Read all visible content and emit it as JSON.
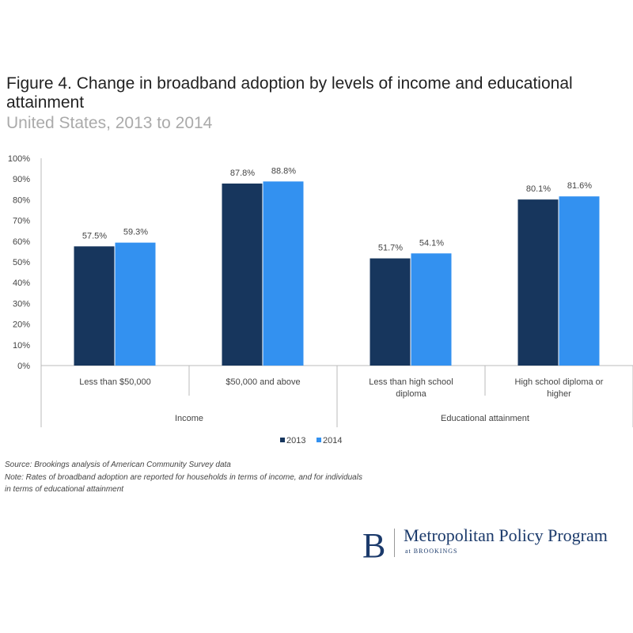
{
  "title": "Figure 4. Change in broadband adoption by levels of income and educational attainment",
  "subtitle": "United States, 2013 to 2014",
  "chart_data": {
    "type": "bar",
    "categories": [
      "Less than $50,000",
      "$50,000 and above",
      "Less than high school diploma",
      "High school diploma or higher"
    ],
    "groups": [
      {
        "label": "Income",
        "categories": [
          0,
          1
        ]
      },
      {
        "label": "Educational attainment",
        "categories": [
          2,
          3
        ]
      }
    ],
    "series": [
      {
        "name": "2013",
        "color": "#17365d",
        "values": [
          57.5,
          87.8,
          51.7,
          80.1
        ],
        "labels": [
          "57.5%",
          "87.8%",
          "51.7%",
          "80.1%"
        ]
      },
      {
        "name": "2014",
        "color": "#3391f0",
        "values": [
          59.3,
          88.8,
          54.1,
          81.6
        ],
        "labels": [
          "59.3%",
          "88.8%",
          "54.1%",
          "81.6%"
        ]
      }
    ],
    "yticks": [
      "0%",
      "10%",
      "20%",
      "30%",
      "40%",
      "50%",
      "60%",
      "70%",
      "80%",
      "90%",
      "100%"
    ],
    "ylim": [
      0,
      100
    ],
    "grid": false,
    "legend": "bottom"
  },
  "footer": {
    "source": "Source: Brookings analysis of American Community Survey data",
    "note1": "Note: Rates of broadband adoption are reported for households in terms of income, and for individuals",
    "note2": "in terms of educational attainment"
  },
  "logo": {
    "letter": "B",
    "name": "Metropolitan Policy Program",
    "sub": "at BROOKINGS"
  }
}
